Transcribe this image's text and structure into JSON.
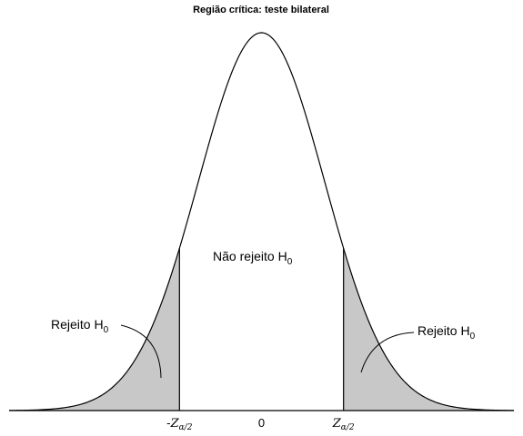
{
  "chart_data": {
    "type": "area",
    "title": "Região crítica: teste bilateral",
    "xlabel": "",
    "ylabel": "",
    "xlim": [
      -4,
      4
    ],
    "distribution": "normal",
    "mean": 0,
    "sd": 1,
    "critical_values": [
      -1.3,
      1.3
    ],
    "shaded_regions": [
      {
        "from": -4,
        "to": -1.3,
        "label": "Rejeito H0"
      },
      {
        "from": 1.3,
        "to": 4,
        "label": "Rejeito H0"
      }
    ],
    "ticks": [
      {
        "x": -1.3,
        "label_main": "-Z",
        "label_sub": "α/2"
      },
      {
        "x": 0,
        "label_main": "0",
        "label_sub": ""
      },
      {
        "x": 1.3,
        "label_main": "Z",
        "label_sub": "α/2"
      }
    ],
    "annotations": {
      "accept": {
        "main": "Não rejeito H",
        "sub": "0"
      },
      "reject_left": {
        "main": "Rejeito H",
        "sub": "0"
      },
      "reject_right": {
        "main": "Rejeito H",
        "sub": "0"
      }
    },
    "colors": {
      "curve": "#000000",
      "fill": "#c8c8c8",
      "axis": "#000000"
    }
  }
}
